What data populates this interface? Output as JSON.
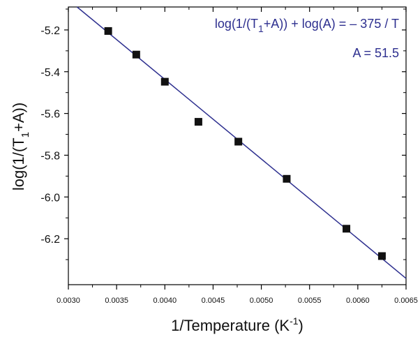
{
  "colors": {
    "line": "#2d2f8f",
    "marker": "#111111",
    "axis": "#000000",
    "annotation": "#2d2f8f"
  },
  "chart_data": {
    "type": "scatter",
    "xlabel": "1/Temperature (K",
    "xlabel_sup": "-1",
    "xlabel_end": ")",
    "ylabel_main": "log(1/(T",
    "ylabel_sub": "1",
    "ylabel_end": "+A))",
    "xlim": [
      0.003,
      0.0065
    ],
    "ylim": [
      -6.42,
      -5.09
    ],
    "x_ticks": [
      0.003,
      0.0035,
      0.004,
      0.0045,
      0.005,
      0.0055,
      0.006,
      0.0065
    ],
    "x_tick_labels": [
      "0.0030",
      "0.0035",
      "0.0040",
      "0.0045",
      "0.0050",
      "0.0055",
      "0.0060",
      "0.0065"
    ],
    "y_ticks": [
      -5.2,
      -5.4,
      -5.6,
      -5.8,
      -6.0,
      -6.2
    ],
    "y_tick_labels": [
      "-5.2",
      "-5.4",
      "-5.6",
      "-5.8",
      "-6.0",
      "-6.2"
    ],
    "points": [
      {
        "x": 0.003413,
        "y": -5.205
      },
      {
        "x": 0.003704,
        "y": -5.318
      },
      {
        "x": 0.004,
        "y": -5.448
      },
      {
        "x": 0.004348,
        "y": -5.64
      },
      {
        "x": 0.004762,
        "y": -5.735
      },
      {
        "x": 0.005263,
        "y": -5.913
      },
      {
        "x": 0.005882,
        "y": -6.152
      },
      {
        "x": 0.00625,
        "y": -6.283
      }
    ],
    "fit_line": {
      "x": [
        0.00309,
        0.0065
      ],
      "y": [
        -5.09,
        -6.39
      ]
    },
    "annotations": {
      "equation_part1": "log(1/(T",
      "equation_sub": "1",
      "equation_part2": "+A)) + log(A) = – 375 / T",
      "parameter": "A = 51.5"
    },
    "grid": false
  }
}
